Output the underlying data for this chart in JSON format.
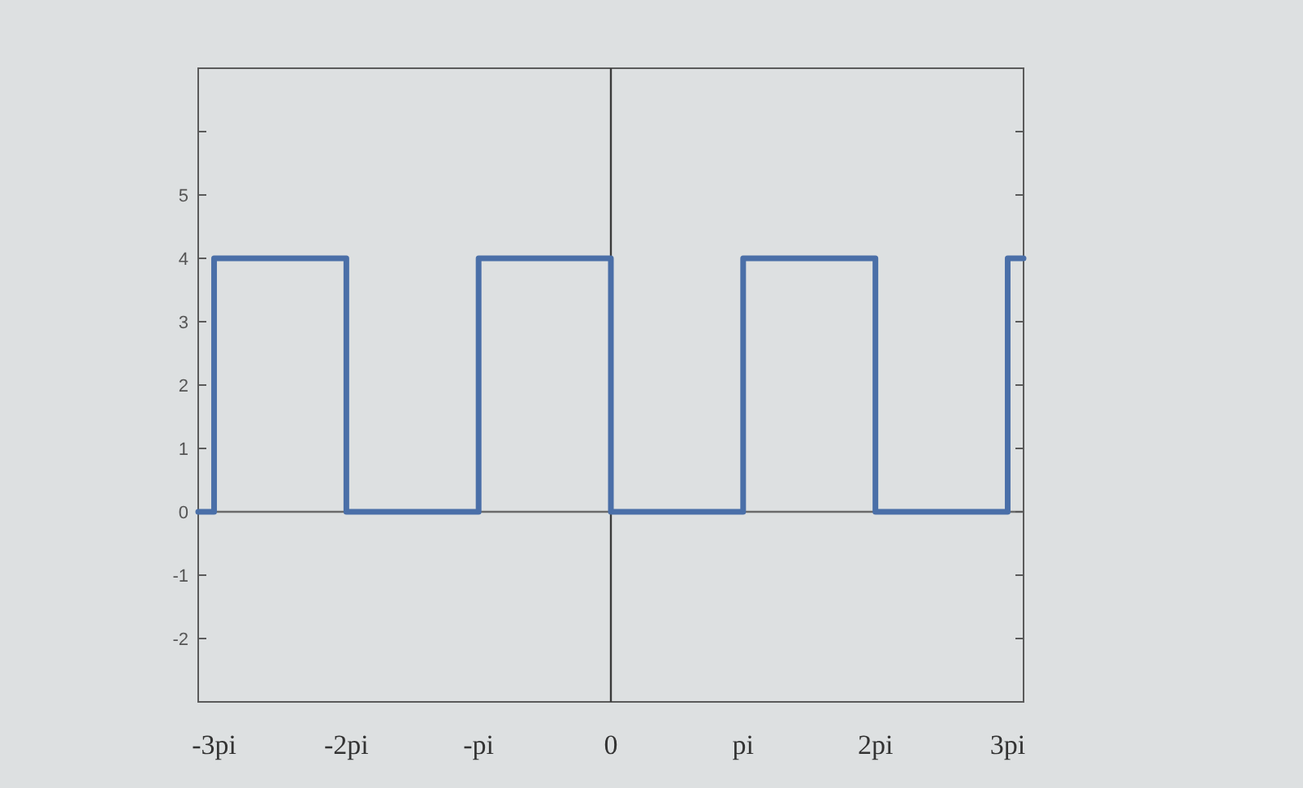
{
  "chart_data": {
    "type": "line",
    "x": [
      -3.12,
      -3,
      -3,
      -2,
      -2,
      -1,
      -1,
      0,
      0,
      1,
      1,
      2,
      2,
      3,
      3,
      3.12
    ],
    "series": [
      {
        "color": "#4a6fa8",
        "values": [
          0,
          0,
          4,
          4,
          0,
          0,
          4,
          4,
          0,
          0,
          4,
          4,
          0,
          0,
          4,
          4
        ]
      }
    ],
    "xlim": [
      -3.12,
      3.12
    ],
    "xticks": [
      {
        "value": -3,
        "label": "-3pi"
      },
      {
        "value": -2,
        "label": "-2pi"
      },
      {
        "value": -1,
        "label": "-pi"
      },
      0,
      {
        "value": 1,
        "label": "pi"
      },
      {
        "value": 2,
        "label": "2pi"
      },
      {
        "value": 3,
        "label": "3pi"
      }
    ],
    "ylim": [
      -3,
      7
    ],
    "yticks": [
      -2,
      -1,
      0,
      1,
      2,
      3,
      4,
      5,
      {
        "value": 6,
        "label": null
      }
    ],
    "ref_lines": [
      {
        "axis": "x",
        "value": 0,
        "color": "#3a3a3a"
      },
      {
        "axis": "y",
        "value": 0,
        "color": "#6a6a6a"
      }
    ]
  }
}
